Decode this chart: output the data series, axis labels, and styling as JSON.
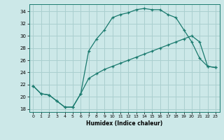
{
  "xlabel": "Humidex (Indice chaleur)",
  "bg_color": "#cce8e8",
  "grid_color": "#aacfcf",
  "line_color": "#1a7a6e",
  "xlim": [
    -0.5,
    23.5
  ],
  "ylim": [
    17.5,
    35.2
  ],
  "xticks": [
    0,
    1,
    2,
    3,
    4,
    5,
    6,
    7,
    8,
    9,
    10,
    11,
    12,
    13,
    14,
    15,
    16,
    17,
    18,
    19,
    20,
    21,
    22,
    23
  ],
  "yticks": [
    18,
    20,
    22,
    24,
    26,
    28,
    30,
    32,
    34
  ],
  "series1_x": [
    0,
    1,
    2,
    3,
    4,
    5,
    6,
    7,
    8,
    9,
    10,
    11,
    12,
    13,
    14,
    15,
    16,
    17,
    18,
    19,
    20,
    21,
    22,
    23
  ],
  "series1_y": [
    21.8,
    20.5,
    20.3,
    19.3,
    18.3,
    18.3,
    20.5,
    27.5,
    29.5,
    31.0,
    33.0,
    33.5,
    33.8,
    34.3,
    34.5,
    34.3,
    34.3,
    33.5,
    33.0,
    31.0,
    29.0,
    26.3,
    25.0,
    24.8
  ],
  "series2_x": [
    0,
    1,
    2,
    3,
    4,
    5,
    6,
    7,
    8,
    9,
    10,
    11,
    12,
    13,
    14,
    15,
    16,
    17,
    18,
    19,
    20,
    21,
    22,
    23
  ],
  "series2_y": [
    21.8,
    20.5,
    20.3,
    19.3,
    18.3,
    18.3,
    20.5,
    23.0,
    23.8,
    24.5,
    25.0,
    25.5,
    26.0,
    26.5,
    27.0,
    27.5,
    28.0,
    28.5,
    29.0,
    29.5,
    30.0,
    29.0,
    25.0,
    24.8
  ]
}
